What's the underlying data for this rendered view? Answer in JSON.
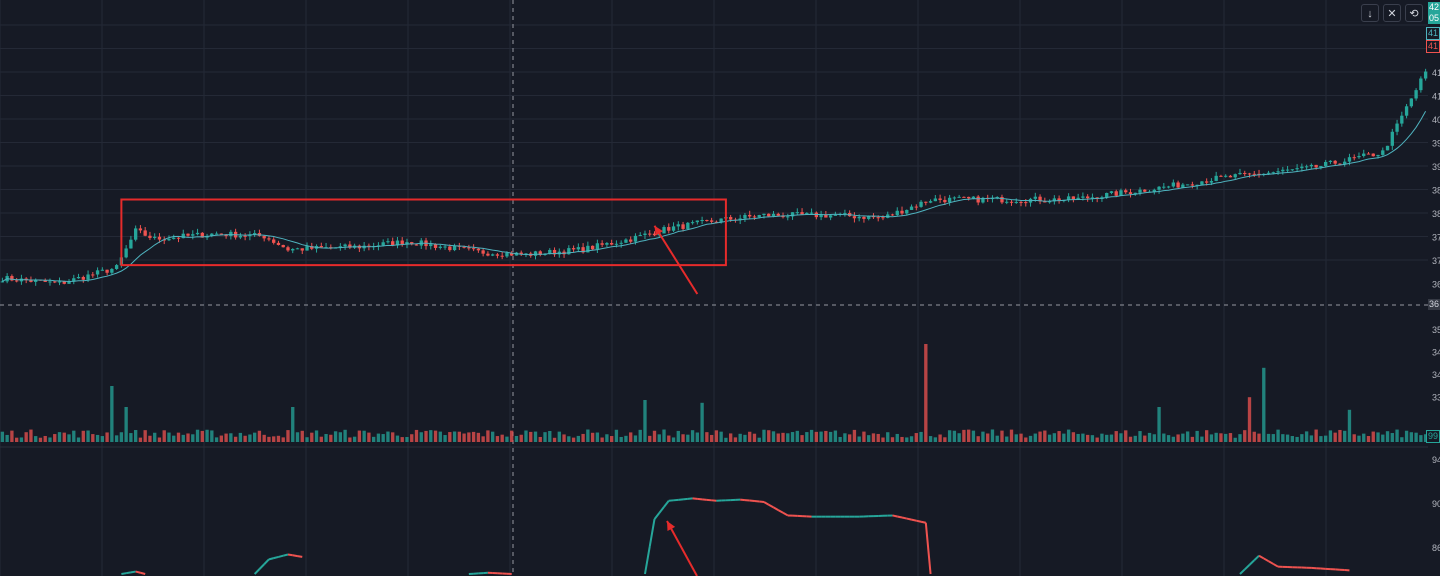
{
  "toolbar": {
    "down_icon": "↓",
    "collapse_icon": "✕",
    "fit_icon": "⟲"
  },
  "price_tags": {
    "last_top": "42",
    "last_bottom": "05",
    "ma": "41",
    "other": "41"
  },
  "crosshair_label": "36",
  "volume_label": "99",
  "colors": {
    "up": "#26a69a",
    "down": "#ef5350",
    "background": "#161a25",
    "grid": "#242936",
    "ma_line": "#4fb3bf",
    "annotation": "#e62b2b",
    "axis_text": "#b2b5be"
  },
  "chart_data": [
    {
      "type": "candlestick",
      "panel": "price",
      "y_tick_labels": [
        "41",
        "41",
        "40",
        "39",
        "39",
        "38",
        "38",
        "37",
        "37",
        "36"
      ],
      "ylim": [
        36.4,
        42.4
      ],
      "x_count": 300,
      "series": [
        {
          "name": "",
          "kind": "candles",
          "path_points": [
            [
              0,
              37.1
            ],
            [
              12,
              37.0
            ],
            [
              24,
              37.3
            ],
            [
              28,
              38.0
            ],
            [
              32,
              37.85
            ],
            [
              45,
              37.95
            ],
            [
              55,
              37.9
            ],
            [
              60,
              37.65
            ],
            [
              75,
              37.7
            ],
            [
              85,
              37.8
            ],
            [
              100,
              37.6
            ],
            [
              110,
              37.55
            ],
            [
              122,
              37.65
            ],
            [
              132,
              37.85
            ],
            [
              140,
              38.05
            ],
            [
              150,
              38.2
            ],
            [
              160,
              38.3
            ],
            [
              175,
              38.3
            ],
            [
              185,
              38.25
            ],
            [
              195,
              38.6
            ],
            [
              225,
              38.6
            ],
            [
              245,
              38.85
            ],
            [
              255,
              39.0
            ],
            [
              275,
              39.2
            ],
            [
              290,
              39.5
            ],
            [
              300,
              41.2
            ],
            [
              320,
              41.4
            ],
            [
              340,
              41.5
            ],
            [
              360,
              41.4
            ]
          ]
        },
        {
          "name": "",
          "kind": "moving-average"
        }
      ],
      "annotations": [
        {
          "type": "rectangle",
          "x_range": [
            25,
            152
          ],
          "y_range": [
            37.35,
            38.6
          ]
        },
        {
          "type": "arrow",
          "from": [
            146,
            36.8
          ],
          "to": [
            137,
            38.1
          ]
        }
      ]
    },
    {
      "type": "bar",
      "panel": "volume",
      "y_tick_labels": [
        "35",
        "34",
        "34",
        "33"
      ],
      "spikes": [
        [
          23,
          4
        ],
        [
          26,
          2.5
        ],
        [
          61,
          2.5
        ],
        [
          135,
          3
        ],
        [
          147,
          2.8
        ],
        [
          194,
          7
        ],
        [
          243,
          2.5
        ],
        [
          262,
          3.2
        ],
        [
          265,
          5.3
        ],
        [
          283,
          2.3
        ]
      ]
    },
    {
      "type": "line",
      "panel": "indicator",
      "y_tick_labels": [
        "94",
        "90",
        "86"
      ],
      "ylim": [
        84,
        94
      ],
      "segments": [
        [
          [
            25,
            84
          ],
          [
            28,
            84.2
          ],
          [
            30,
            84.0
          ]
        ],
        [
          [
            53,
            84
          ],
          [
            56,
            85.2
          ],
          [
            60,
            85.6
          ],
          [
            63,
            85.4
          ]
        ],
        [
          [
            98,
            84
          ],
          [
            102,
            84.1
          ],
          [
            107,
            84.0
          ]
        ],
        [
          [
            135,
            84
          ],
          [
            137,
            88.5
          ],
          [
            140,
            90
          ],
          [
            145,
            90.2
          ],
          [
            150,
            90.0
          ],
          [
            155,
            90.1
          ],
          [
            160,
            89.9
          ],
          [
            165,
            88.8
          ],
          [
            170,
            88.7
          ],
          [
            180,
            88.7
          ],
          [
            187,
            88.8
          ],
          [
            194,
            88.2
          ],
          [
            195,
            84
          ]
        ],
        [
          [
            260,
            84
          ],
          [
            264,
            85.5
          ],
          [
            268,
            84.6
          ],
          [
            275,
            84.5
          ],
          [
            283,
            84.3
          ]
        ]
      ]
    }
  ]
}
